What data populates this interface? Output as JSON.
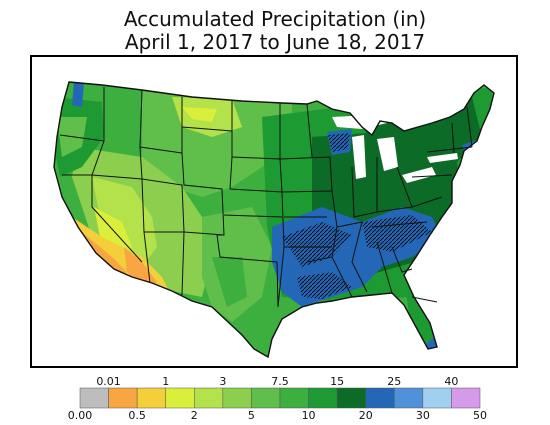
{
  "title": {
    "line1": "Accumulated Precipitation (in)",
    "line2": "April 1, 2017 to June 18, 2017"
  },
  "legend": {
    "bins": [
      {
        "from": 0.0,
        "to": 0.01,
        "color": "#bdbdbd"
      },
      {
        "from": 0.01,
        "to": 0.5,
        "color": "#f7a642"
      },
      {
        "from": 0.5,
        "to": 1,
        "color": "#f3cf3a"
      },
      {
        "from": 1,
        "to": 2,
        "color": "#d9ef3b"
      },
      {
        "from": 2,
        "to": 3,
        "color": "#b4e24a"
      },
      {
        "from": 3,
        "to": 5,
        "color": "#8ccf4f"
      },
      {
        "from": 5,
        "to": 7.5,
        "color": "#5fbf4a"
      },
      {
        "from": 7.5,
        "to": 10,
        "color": "#3daf3f"
      },
      {
        "from": 10,
        "to": 15,
        "color": "#1e9a32"
      },
      {
        "from": 15,
        "to": 20,
        "color": "#0b6b27"
      },
      {
        "from": 20,
        "to": 25,
        "color": "#2467b7"
      },
      {
        "from": 25,
        "to": 30,
        "color": "#4f92d9"
      },
      {
        "from": 30,
        "to": 40,
        "color": "#9fd0f0"
      },
      {
        "from": 40,
        "to": 50,
        "color": "#d59ae9"
      }
    ],
    "top_labels": [
      "0.01",
      "1",
      "3",
      "7.5",
      "15",
      "25",
      "40"
    ],
    "bottom_labels": [
      "0.00",
      "0.5",
      "2",
      "5",
      "10",
      "20",
      "30",
      "50"
    ]
  },
  "colors": {
    "background": "#ffffff",
    "border": "#000000",
    "state_lines": "#111111",
    "hatch": "#000000"
  }
}
